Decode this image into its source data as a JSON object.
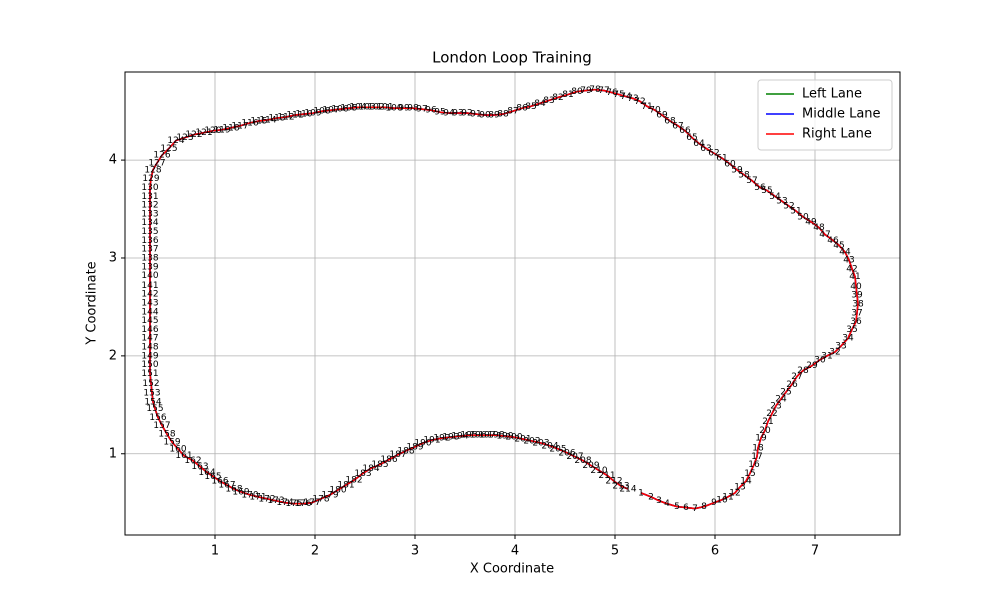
{
  "chart_data": {
    "type": "track",
    "title": "London Loop Training",
    "x_label": "X Coordinate",
    "y_label": "Y Coordinate",
    "xlim": [
      0.1,
      7.85
    ],
    "ylim": [
      0.17,
      4.9
    ],
    "xticks": [
      1,
      2,
      3,
      4,
      5,
      6,
      7
    ],
    "yticks": [
      1,
      2,
      3,
      4
    ],
    "grid": true,
    "legend": "upper right",
    "series": [
      {
        "name": "Left Lane",
        "color": "#008000"
      },
      {
        "name": "Middle Lane",
        "color": "#0000ff"
      },
      {
        "name": "Right Lane",
        "color": "#ff0000"
      }
    ],
    "point_labels": [
      1,
      2,
      3,
      4,
      5,
      6,
      7,
      8,
      9,
      10,
      11,
      12,
      13,
      14,
      15,
      16,
      17,
      18,
      19,
      20,
      21,
      22,
      23,
      24,
      25,
      26,
      27,
      28,
      29,
      30,
      31,
      32,
      33,
      34,
      35,
      36,
      37,
      38,
      39,
      40,
      41,
      42,
      43,
      44,
      45,
      46,
      47,
      48,
      49,
      50,
      51,
      52,
      53,
      54,
      55,
      56,
      57,
      58,
      59,
      60,
      61,
      62,
      63,
      64,
      65,
      66,
      67,
      68,
      69,
      70,
      71,
      72,
      73,
      74,
      75,
      76,
      77,
      78,
      79,
      80,
      81,
      82,
      83,
      84,
      85,
      86,
      87,
      88,
      89,
      90,
      91,
      92,
      93,
      94,
      95,
      96,
      97,
      98,
      99,
      100,
      101,
      102,
      103,
      104,
      105,
      106,
      107,
      108,
      109,
      110,
      111,
      112,
      113,
      114,
      115,
      116,
      117,
      118,
      119,
      120,
      121,
      122,
      123,
      124,
      125,
      126,
      127,
      128,
      129,
      130,
      131,
      132,
      133,
      134,
      135,
      136,
      137,
      138,
      139,
      140,
      141,
      142,
      143,
      144,
      145,
      146,
      147,
      148,
      149,
      150,
      151,
      152,
      153,
      154,
      155,
      156,
      157,
      158,
      159,
      160,
      161,
      162,
      163,
      164,
      165,
      166,
      167,
      168,
      169,
      170,
      171,
      172,
      173,
      174,
      175,
      176,
      177,
      178,
      179,
      180,
      181,
      182,
      183,
      184,
      185,
      186,
      187,
      188,
      189,
      190,
      191,
      192,
      193,
      194,
      195,
      196,
      197,
      198,
      199,
      200,
      201,
      202,
      203,
      204,
      205,
      206,
      207,
      208,
      209,
      210,
      211,
      212,
      213,
      214
    ],
    "x": [
      5.26,
      5.36,
      5.44,
      5.52,
      5.62,
      5.71,
      5.8,
      5.89,
      5.99,
      6.07,
      6.13,
      6.2,
      6.25,
      6.31,
      6.35,
      6.39,
      6.42,
      6.43,
      6.46,
      6.5,
      6.53,
      6.57,
      6.61,
      6.66,
      6.71,
      6.77,
      6.82,
      6.88,
      6.97,
      7.05,
      7.12,
      7.2,
      7.26,
      7.33,
      7.37,
      7.41,
      7.42,
      7.43,
      7.42,
      7.41,
      7.4,
      7.37,
      7.34,
      7.3,
      7.24,
      7.18,
      7.1,
      7.04,
      6.96,
      6.88,
      6.81,
      6.74,
      6.67,
      6.6,
      6.52,
      6.45,
      6.37,
      6.29,
      6.22,
      6.15,
      6.07,
      5.99,
      5.91,
      5.84,
      5.77,
      5.7,
      5.63,
      5.55,
      5.47,
      5.4,
      5.32,
      5.25,
      5.18,
      5.11,
      5.04,
      4.97,
      4.89,
      4.8,
      4.71,
      4.62,
      4.53,
      4.43,
      4.34,
      4.25,
      4.16,
      4.07,
      3.98,
      3.88,
      3.79,
      3.7,
      3.61,
      3.52,
      3.43,
      3.34,
      3.25,
      3.16,
      3.07,
      2.98,
      2.89,
      2.79,
      2.7,
      2.61,
      2.52,
      2.43,
      2.34,
      2.25,
      2.16,
      2.07,
      1.98,
      1.89,
      1.8,
      1.71,
      1.62,
      1.53,
      1.44,
      1.35,
      1.25,
      1.16,
      1.07,
      0.98,
      0.89,
      0.79,
      0.7,
      0.61,
      0.54,
      0.47,
      0.42,
      0.38,
      0.36,
      0.35,
      0.35,
      0.35,
      0.35,
      0.35,
      0.35,
      0.35,
      0.35,
      0.35,
      0.35,
      0.35,
      0.35,
      0.35,
      0.35,
      0.35,
      0.35,
      0.35,
      0.35,
      0.35,
      0.35,
      0.35,
      0.35,
      0.36,
      0.37,
      0.38,
      0.4,
      0.43,
      0.47,
      0.52,
      0.57,
      0.63,
      0.69,
      0.78,
      0.85,
      0.92,
      0.98,
      1.05,
      1.12,
      1.19,
      1.26,
      1.35,
      1.43,
      1.52,
      1.61,
      1.7,
      1.79,
      1.88,
      1.97,
      2.06,
      2.15,
      2.23,
      2.31,
      2.39,
      2.48,
      2.56,
      2.65,
      2.74,
      2.83,
      2.91,
      3.0,
      3.08,
      3.17,
      3.27,
      3.36,
      3.45,
      3.54,
      3.63,
      3.72,
      3.81,
      3.9,
      3.99,
      4.08,
      4.17,
      4.26,
      4.35,
      4.43,
      4.52,
      4.6,
      4.68,
      4.76,
      4.84,
      4.92,
      4.99,
      5.06,
      5.13
    ],
    "y": [
      0.6,
      0.56,
      0.52,
      0.49,
      0.46,
      0.45,
      0.44,
      0.46,
      0.5,
      0.53,
      0.56,
      0.6,
      0.66,
      0.72,
      0.8,
      0.89,
      0.97,
      1.06,
      1.16,
      1.24,
      1.33,
      1.41,
      1.49,
      1.56,
      1.63,
      1.71,
      1.79,
      1.85,
      1.9,
      1.96,
      2.0,
      2.04,
      2.1,
      2.18,
      2.27,
      2.35,
      2.44,
      2.53,
      2.62,
      2.71,
      2.81,
      2.89,
      2.98,
      3.06,
      3.13,
      3.18,
      3.24,
      3.31,
      3.37,
      3.42,
      3.48,
      3.53,
      3.58,
      3.63,
      3.69,
      3.72,
      3.79,
      3.85,
      3.9,
      3.96,
      4.02,
      4.07,
      4.12,
      4.17,
      4.23,
      4.3,
      4.35,
      4.4,
      4.46,
      4.51,
      4.55,
      4.6,
      4.63,
      4.65,
      4.67,
      4.69,
      4.71,
      4.72,
      4.71,
      4.7,
      4.67,
      4.64,
      4.61,
      4.58,
      4.55,
      4.53,
      4.5,
      4.47,
      4.46,
      4.46,
      4.47,
      4.48,
      4.48,
      4.48,
      4.49,
      4.51,
      4.52,
      4.53,
      4.53,
      4.53,
      4.54,
      4.54,
      4.54,
      4.54,
      4.53,
      4.52,
      4.51,
      4.5,
      4.48,
      4.47,
      4.46,
      4.44,
      4.43,
      4.41,
      4.4,
      4.38,
      4.35,
      4.33,
      4.31,
      4.3,
      4.28,
      4.26,
      4.23,
      4.2,
      4.12,
      4.05,
      3.97,
      3.9,
      3.81,
      3.72,
      3.63,
      3.54,
      3.45,
      3.36,
      3.27,
      3.18,
      3.09,
      3.0,
      2.91,
      2.82,
      2.72,
      2.63,
      2.54,
      2.45,
      2.36,
      2.27,
      2.18,
      2.09,
      2.0,
      1.91,
      1.82,
      1.72,
      1.62,
      1.53,
      1.46,
      1.37,
      1.29,
      1.2,
      1.12,
      1.05,
      0.98,
      0.93,
      0.87,
      0.81,
      0.77,
      0.72,
      0.68,
      0.64,
      0.61,
      0.58,
      0.56,
      0.54,
      0.52,
      0.5,
      0.49,
      0.49,
      0.5,
      0.54,
      0.58,
      0.63,
      0.68,
      0.73,
      0.8,
      0.85,
      0.89,
      0.94,
      0.99,
      1.03,
      1.07,
      1.11,
      1.14,
      1.16,
      1.17,
      1.18,
      1.19,
      1.19,
      1.19,
      1.19,
      1.18,
      1.17,
      1.15,
      1.13,
      1.11,
      1.08,
      1.05,
      1.01,
      0.97,
      0.93,
      0.88,
      0.83,
      0.78,
      0.72,
      0.67,
      0.64
    ]
  }
}
